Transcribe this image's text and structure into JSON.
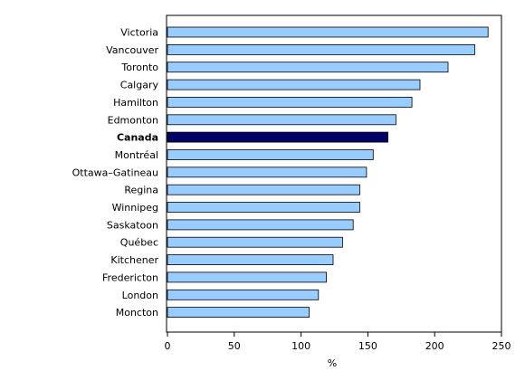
{
  "chart_data": {
    "type": "bar",
    "orientation": "horizontal",
    "title": "",
    "xlabel": "%",
    "ylabel": "",
    "xlim": [
      0,
      250
    ],
    "xticks": [
      0,
      50,
      100,
      150,
      200,
      250
    ],
    "grid": false,
    "categories": [
      "Victoria",
      "Vancouver",
      "Toronto",
      "Calgary",
      "Hamilton",
      "Edmonton",
      "Canada",
      "Montréal",
      "Ottawa–Gatineau",
      "Regina",
      "Winnipeg",
      "Saskatoon",
      "Québec",
      "Kitchener",
      "Fredericton",
      "London",
      "Moncton"
    ],
    "values": [
      240,
      230,
      210,
      189,
      183,
      171,
      165,
      154,
      149,
      144,
      144,
      139,
      131,
      124,
      119,
      113,
      106
    ],
    "highlight": "Canada",
    "colors": {
      "bar": "#99ccff",
      "highlight": "#000066",
      "bar_stroke": "#000000",
      "axis": "#000000"
    }
  }
}
